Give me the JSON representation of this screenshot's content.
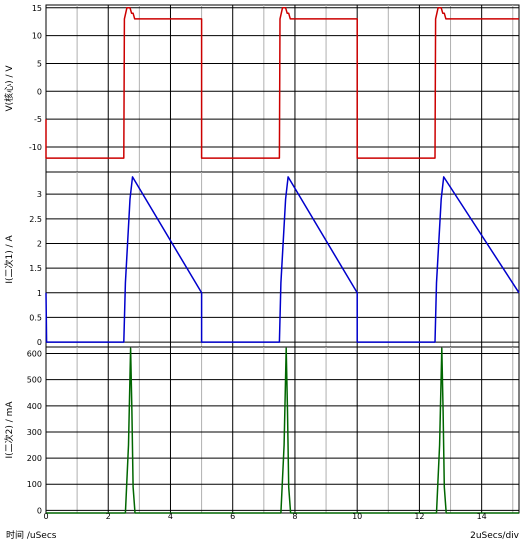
{
  "x_axis": {
    "label": "时间 /uSecs",
    "scale_label": "2uSecs/div",
    "ticks": [
      0,
      2,
      4,
      6,
      8,
      10,
      12,
      14
    ],
    "range": [
      0,
      15.2
    ]
  },
  "colors": {
    "panel1_trace": "#cc0000",
    "panel2_trace": "#0000cc",
    "panel3_trace": "#006600",
    "major_grid": "#000000",
    "minor_grid": "#b0b0b0"
  },
  "chart_data": [
    {
      "type": "line",
      "ylabel": "V(核心) / V",
      "ylim": [
        -14.5,
        15.5
      ],
      "yticks": [
        15,
        10,
        5,
        0,
        -5,
        -10
      ],
      "grid": true,
      "series": [
        {
          "x": [
            0,
            0,
            0.05,
            2.5,
            2.52,
            2.6,
            2.7,
            2.75,
            2.8,
            2.85,
            5.0,
            5.0,
            7.5,
            7.52,
            7.6,
            7.7,
            7.75,
            7.8,
            7.85,
            10.0,
            10.0,
            12.5,
            12.52,
            12.6,
            12.7,
            12.75,
            12.8,
            12.85,
            15.2
          ],
          "y": [
            -5,
            -12,
            -12,
            -12,
            13,
            15,
            15,
            14,
            14,
            13,
            13,
            -12,
            -12,
            13,
            15,
            15,
            14,
            14,
            13,
            13,
            -12,
            -12,
            13,
            15,
            15,
            14,
            14,
            13,
            13
          ]
        }
      ]
    },
    {
      "type": "line",
      "ylabel": "I(二次1) / A",
      "ylim": [
        -0.1,
        3.45
      ],
      "yticks": [
        3,
        2.5,
        2,
        1.5,
        1,
        0.5,
        0
      ],
      "grid": true,
      "series": [
        {
          "x": [
            0,
            0.02,
            0.1,
            2.5,
            2.55,
            2.7,
            2.78,
            5.0,
            5.0,
            7.5,
            7.55,
            7.7,
            7.78,
            10.0,
            10.0,
            12.5,
            12.55,
            12.7,
            12.78,
            15.2
          ],
          "y": [
            1.0,
            0.0,
            0.0,
            0.0,
            1.2,
            2.9,
            3.35,
            1.0,
            0.0,
            0.0,
            1.2,
            2.9,
            3.35,
            1.0,
            0.0,
            0.0,
            1.2,
            2.9,
            3.35,
            1.0
          ]
        }
      ]
    },
    {
      "type": "line",
      "ylabel": "I(二次2) / mA",
      "ylim": [
        -10,
        625
      ],
      "yticks": [
        600,
        500,
        400,
        300,
        200,
        100,
        0
      ],
      "grid": true,
      "series": [
        {
          "x": [
            0,
            2.55,
            2.65,
            2.72,
            2.76,
            2.8,
            2.86,
            7.55,
            7.65,
            7.72,
            7.76,
            7.8,
            7.86,
            12.55,
            12.65,
            12.72,
            12.76,
            12.8,
            12.86,
            15.2
          ],
          "y": [
            -10,
            -10,
            250,
            620,
            380,
            90,
            -10,
            -10,
            250,
            620,
            380,
            90,
            -10,
            -10,
            250,
            620,
            380,
            90,
            -10,
            -10
          ]
        }
      ]
    }
  ]
}
